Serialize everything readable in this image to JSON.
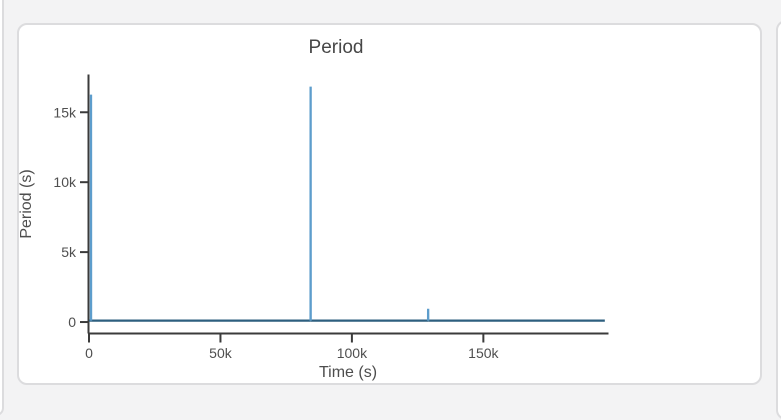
{
  "page": {
    "background_color": "#f3f3f4",
    "card_border_color": "#dcdcde",
    "card_background_color": "#ffffff"
  },
  "chart_data": {
    "type": "line",
    "title": "Period",
    "xlabel": "Time (s)",
    "ylabel": "Period (s)",
    "xlim": [
      0,
      197600
    ],
    "ylim": [
      -820,
      17700
    ],
    "grid": false,
    "legend": "none",
    "x_ticks": [
      {
        "value": 0,
        "label": "0"
      },
      {
        "value": 50000,
        "label": "50k"
      },
      {
        "value": 100000,
        "label": "100k"
      },
      {
        "value": 150000,
        "label": "150k"
      }
    ],
    "y_ticks": [
      {
        "value": 0,
        "label": "0"
      },
      {
        "value": 5000,
        "label": "5k"
      },
      {
        "value": 10000,
        "label": "10k"
      },
      {
        "value": 15000,
        "label": "15k"
      }
    ],
    "series": [
      {
        "name": "Period",
        "points": [
          [
            0,
            100
          ],
          [
            740,
            100
          ],
          [
            760,
            16260
          ],
          [
            780,
            100
          ],
          [
            84280,
            100
          ],
          [
            84300,
            16830
          ],
          [
            84320,
            100
          ],
          [
            128980,
            100
          ],
          [
            129000,
            950
          ],
          [
            129020,
            100
          ],
          [
            196200,
            100
          ]
        ]
      }
    ],
    "annotations": {
      "baseline_value_approx": 100,
      "spikes": [
        {
          "time_s": 760,
          "period_s": 16260
        },
        {
          "time_s": 84300,
          "period_s": 16830
        },
        {
          "time_s": 129000,
          "period_s": 950
        }
      ]
    },
    "colors": {
      "line_vertical": "#5d9dcc",
      "line_horizontal": "#2d5f7f",
      "axis": "#3b3b3b",
      "tick_label": "#4f4f4f",
      "axis_label": "#4d4d4d",
      "title": "#474747"
    }
  }
}
